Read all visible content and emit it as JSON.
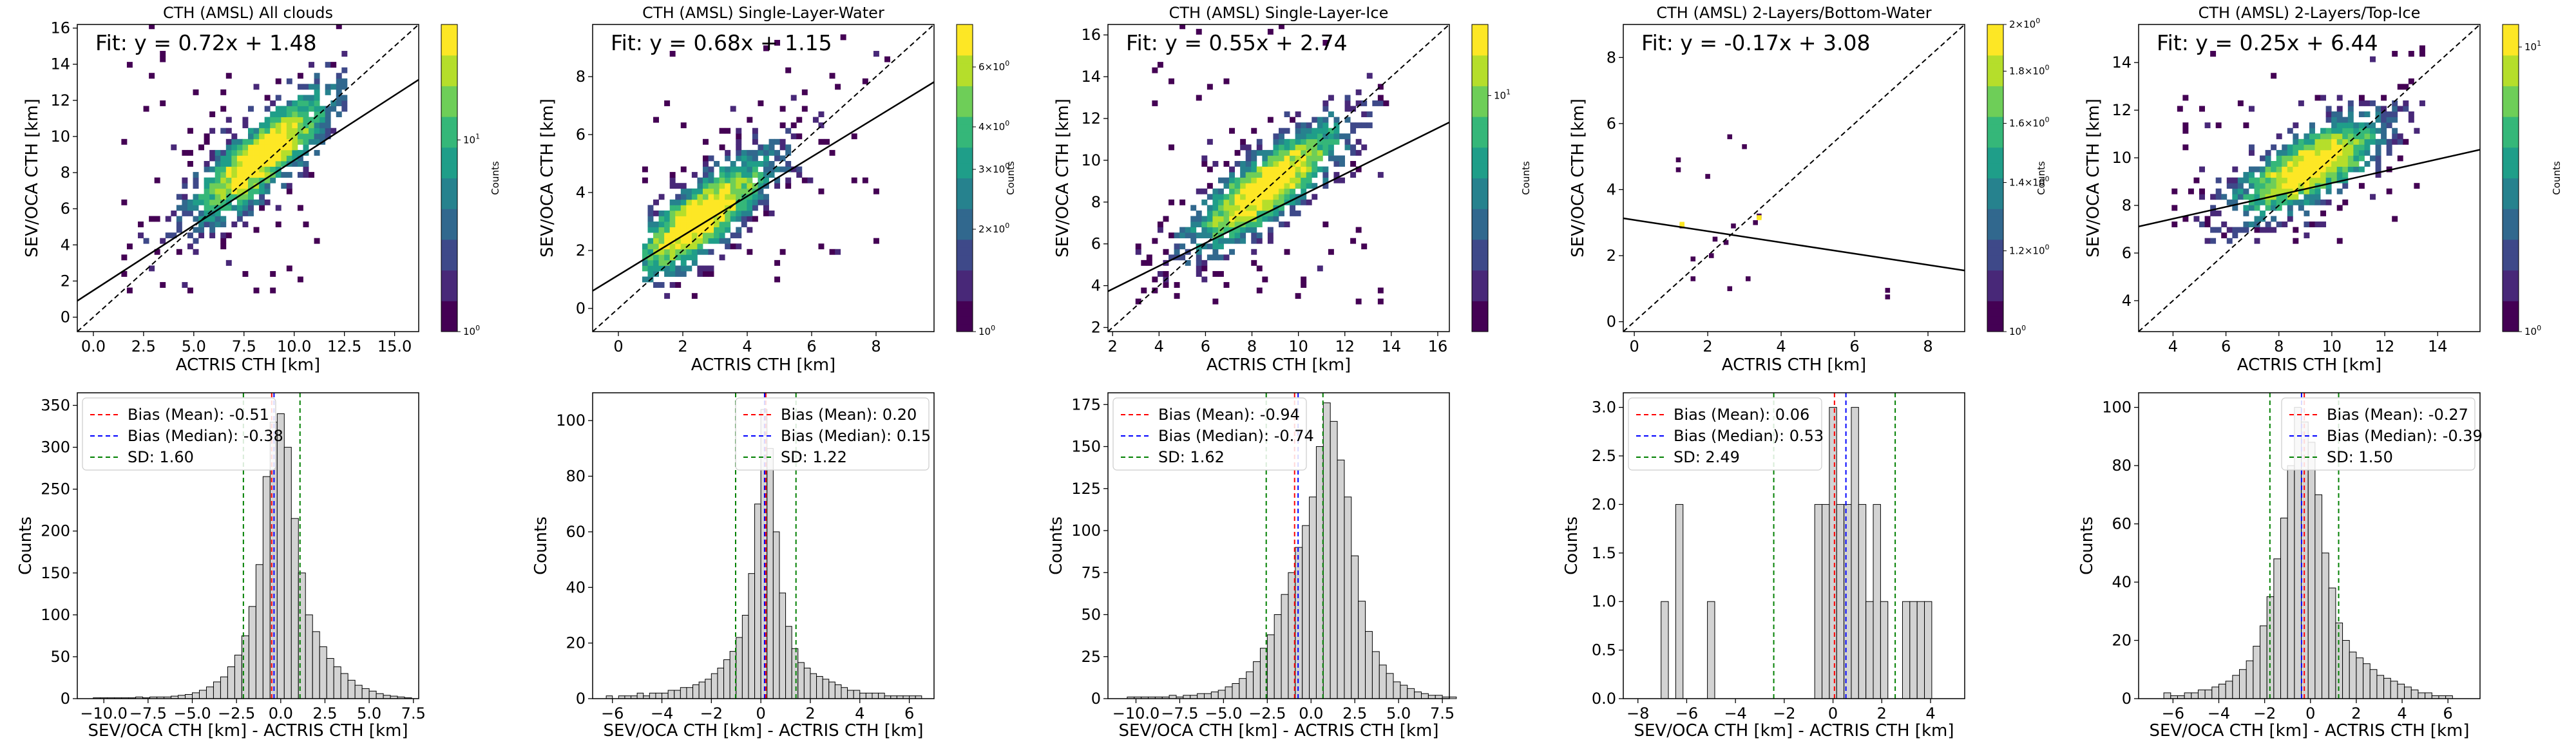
{
  "figure": {
    "scatter_xlabel": "ACTRIS CTH [km]",
    "scatter_ylabel": "SEV/OCA CTH [km]",
    "hist_xlabel": "SEV/OCA CTH [km] - ACTRIS CTH [km]",
    "hist_ylabel": "Counts",
    "colorbar_label": "Counts"
  },
  "colors": {
    "heat_low": "#440154",
    "heat_mid": "#21918c",
    "heat_high": "#fde725",
    "mean_line": "#ff0000",
    "median_line": "#0000ff",
    "sd_line": "#008000",
    "hist_fill": "#d3d3d3"
  },
  "chart_data": [
    {
      "type": "heatmap",
      "title": "CTH (AMSL) All clouds",
      "fit_label": "Fit: y = 0.72x + 1.48",
      "fit": {
        "slope": 0.72,
        "intercept": 1.48
      },
      "xlim": [
        -0.8,
        16.2
      ],
      "ylim": [
        -0.8,
        16.2
      ],
      "xticks": [
        0.0,
        2.5,
        5.0,
        7.5,
        10.0,
        12.5,
        15.0
      ],
      "yticks": [
        0,
        2,
        4,
        6,
        8,
        10,
        12,
        14,
        16
      ],
      "colorbar_ticks": [
        "10^0",
        "10^1"
      ],
      "colorbar_range": [
        1,
        40
      ],
      "cluster": {
        "x_range": [
          1.0,
          12.5
        ],
        "y_range": [
          0.5,
          15.5
        ],
        "center": [
          8.5,
          7.5
        ]
      }
    },
    {
      "type": "heatmap",
      "title": "CTH (AMSL) Single-Layer-Water",
      "fit_label": "Fit: y = 0.68x + 1.15",
      "fit": {
        "slope": 0.68,
        "intercept": 1.15
      },
      "xlim": [
        -0.8,
        9.8
      ],
      "ylim": [
        -0.8,
        9.8
      ],
      "xticks": [
        0,
        2,
        4,
        6,
        8
      ],
      "yticks": [
        0,
        2,
        4,
        6,
        8
      ],
      "colorbar_ticks": [
        "10^0",
        "2×10^0",
        "3×10^0",
        "4×10^0",
        "6×10^0"
      ],
      "colorbar_range": [
        1,
        8
      ],
      "cluster": {
        "x_range": [
          0.7,
          8.5
        ],
        "y_range": [
          0.3,
          8.5
        ],
        "center": [
          2.5,
          2.8
        ]
      }
    },
    {
      "type": "heatmap",
      "title": "CTH (AMSL) Single-Layer-Ice",
      "fit_label": "Fit: y = 0.55x + 2.74",
      "fit": {
        "slope": 0.55,
        "intercept": 2.74
      },
      "xlim": [
        1.8,
        16.5
      ],
      "ylim": [
        1.8,
        16.5
      ],
      "xticks": [
        2,
        4,
        6,
        8,
        10,
        12,
        14,
        16
      ],
      "yticks": [
        2,
        4,
        6,
        8,
        10,
        12,
        14,
        16
      ],
      "colorbar_ticks": [
        "10^1"
      ],
      "colorbar_range": [
        1,
        20
      ],
      "cluster": {
        "x_range": [
          3.0,
          14.0
        ],
        "y_range": [
          3.0,
          15.5
        ],
        "center": [
          8.8,
          7.8
        ]
      }
    },
    {
      "type": "heatmap",
      "title": "CTH (AMSL) 2-Layers/Bottom-Water",
      "fit_label": "Fit: y = -0.17x + 3.08",
      "fit": {
        "slope": -0.17,
        "intercept": 3.08
      },
      "xlim": [
        -0.3,
        9.0
      ],
      "ylim": [
        -0.3,
        9.0
      ],
      "xticks": [
        0,
        2,
        4,
        6,
        8
      ],
      "yticks": [
        0,
        2,
        4,
        6,
        8
      ],
      "colorbar_ticks": [
        "10^0",
        "1.2×10^0",
        "1.4×10^0",
        "1.6×10^0",
        "1.8×10^0",
        "2×10^0"
      ],
      "colorbar_range": [
        1,
        2
      ],
      "points": [
        [
          1.2,
          4.9
        ],
        [
          1.2,
          4.6
        ],
        [
          1.3,
          2.9
        ],
        [
          1.6,
          1.9
        ],
        [
          1.6,
          1.3
        ],
        [
          2.0,
          4.4
        ],
        [
          2.1,
          2.0
        ],
        [
          2.2,
          2.5
        ],
        [
          2.5,
          2.4
        ],
        [
          2.6,
          1.0
        ],
        [
          2.6,
          5.6
        ],
        [
          2.7,
          2.9
        ],
        [
          3.0,
          5.3
        ],
        [
          3.1,
          1.3
        ],
        [
          3.3,
          3.0
        ],
        [
          3.4,
          3.2
        ],
        [
          6.9,
          0.95
        ],
        [
          6.9,
          0.75
        ]
      ],
      "highlighted_points": [
        [
          1.3,
          2.95
        ],
        [
          3.4,
          3.15
        ]
      ]
    },
    {
      "type": "heatmap",
      "title": "CTH (AMSL) 2-Layers/Top-Ice",
      "fit_label": "Fit: y = 0.25x + 6.44",
      "fit": {
        "slope": 0.25,
        "intercept": 6.44
      },
      "xlim": [
        2.7,
        15.6
      ],
      "ylim": [
        2.7,
        15.6
      ],
      "xticks": [
        4,
        6,
        8,
        10,
        12,
        14
      ],
      "yticks": [
        4,
        6,
        8,
        10,
        12,
        14
      ],
      "colorbar_ticks": [
        "10^0",
        "10^1"
      ],
      "colorbar_range": [
        1,
        12
      ],
      "cluster": {
        "x_range": [
          4.0,
          13.5
        ],
        "y_range": [
          6.0,
          13.5
        ],
        "center": [
          9.3,
          8.8
        ]
      }
    },
    {
      "type": "bar",
      "legend": [
        "Bias (Mean): -0.51",
        "Bias (Median): -0.38",
        "SD: 1.60"
      ],
      "legend_position": "top-left",
      "mean": -0.51,
      "median": -0.38,
      "sd": 1.6,
      "xlim": [
        -11.5,
        7.8
      ],
      "ylim": [
        0,
        365
      ],
      "xticks": [
        -10.0,
        -7.5,
        -5.0,
        -2.5,
        0.0,
        2.5,
        5.0,
        7.5
      ],
      "yticks": [
        0,
        50,
        100,
        150,
        200,
        250,
        300,
        350
      ],
      "bin_start": -10.6,
      "bin_width": 0.4,
      "values": [
        1,
        1,
        1,
        1,
        1,
        1,
        2,
        1,
        2,
        2,
        2,
        3,
        4,
        5,
        7,
        10,
        14,
        20,
        26,
        38,
        52,
        75,
        110,
        160,
        265,
        330,
        340,
        300,
        215,
        150,
        100,
        80,
        62,
        48,
        38,
        30,
        22,
        16,
        12,
        9,
        6,
        4,
        3,
        2,
        1
      ]
    },
    {
      "type": "bar",
      "legend": [
        "Bias (Mean): 0.20",
        "Bias (Median): 0.15",
        "SD: 1.22"
      ],
      "legend_position": "top-right",
      "mean": 0.2,
      "median": 0.15,
      "sd": 1.22,
      "xlim": [
        -6.8,
        7.0
      ],
      "ylim": [
        0,
        110
      ],
      "xticks": [
        -6,
        -4,
        -2,
        0,
        2,
        4,
        6
      ],
      "yticks": [
        0,
        20,
        40,
        60,
        80,
        100
      ],
      "bin_start": -6.25,
      "bin_width": 0.25,
      "values": [
        1,
        0,
        1,
        1,
        1,
        2,
        1,
        2,
        2,
        2,
        3,
        3,
        4,
        4,
        5,
        6,
        7,
        9,
        11,
        14,
        17,
        22,
        30,
        45,
        70,
        104,
        90,
        60,
        38,
        26,
        18,
        13,
        11,
        9,
        8,
        7,
        6,
        5,
        4,
        3,
        3,
        2,
        2,
        2,
        2,
        1,
        1,
        1,
        1,
        1,
        1
      ]
    },
    {
      "type": "bar",
      "legend": [
        "Bias (Mean): -0.94",
        "Bias (Median): -0.74",
        "SD: 1.62"
      ],
      "legend_position": "top-left",
      "mean": -0.94,
      "median": -0.74,
      "sd": 1.62,
      "xlim": [
        -11.6,
        7.9
      ],
      "ylim": [
        0,
        182
      ],
      "xticks": [
        -10.0,
        -7.5,
        -5.0,
        -2.5,
        0.0,
        2.5,
        5.0,
        7.5
      ],
      "yticks": [
        0,
        25,
        50,
        75,
        100,
        125,
        150,
        175
      ],
      "bin_start": -10.5,
      "bin_width": 0.4,
      "values": [
        1,
        1,
        1,
        1,
        1,
        1,
        2,
        1,
        2,
        2,
        3,
        3,
        4,
        5,
        7,
        9,
        12,
        16,
        22,
        30,
        38,
        50,
        62,
        75,
        90,
        103,
        120,
        150,
        176,
        165,
        142,
        120,
        85,
        58,
        40,
        28,
        20,
        15,
        10,
        8,
        6,
        4,
        3,
        2,
        2,
        1,
        1
      ]
    },
    {
      "type": "bar",
      "legend": [
        "Bias (Mean): 0.06",
        "Bias (Median): 0.53",
        "SD: 2.49"
      ],
      "legend_position": "top-left",
      "mean": 0.06,
      "median": 0.53,
      "sd": 2.49,
      "xlim": [
        -8.6,
        5.4
      ],
      "ylim": [
        0,
        3.15
      ],
      "xticks": [
        -8,
        -6,
        -4,
        -2,
        0,
        2,
        4
      ],
      "yticks": [
        0.0,
        0.5,
        1.0,
        1.5,
        2.0,
        2.5,
        3.0
      ],
      "bars": [
        {
          "x": -6.9,
          "h": 1
        },
        {
          "x": -6.3,
          "h": 2
        },
        {
          "x": -5.0,
          "h": 1
        },
        {
          "x": -0.6,
          "h": 2
        },
        {
          "x": -0.3,
          "h": 2
        },
        {
          "x": 0.0,
          "h": 3
        },
        {
          "x": 0.3,
          "h": 2
        },
        {
          "x": 0.6,
          "h": 2
        },
        {
          "x": 0.9,
          "h": 3
        },
        {
          "x": 1.2,
          "h": 2
        },
        {
          "x": 1.5,
          "h": 1
        },
        {
          "x": 1.8,
          "h": 2
        },
        {
          "x": 2.1,
          "h": 1
        },
        {
          "x": 3.0,
          "h": 1
        },
        {
          "x": 3.3,
          "h": 1
        },
        {
          "x": 3.6,
          "h": 1
        },
        {
          "x": 3.9,
          "h": 1
        }
      ],
      "bar_width": 0.3
    },
    {
      "type": "bar",
      "legend": [
        "Bias (Mean): -0.27",
        "Bias (Median): -0.39",
        "SD: 1.50"
      ],
      "legend_position": "top-right",
      "mean": -0.27,
      "median": -0.39,
      "sd": 1.5,
      "xlim": [
        -7.5,
        7.4
      ],
      "ylim": [
        0,
        105
      ],
      "xticks": [
        -6,
        -4,
        -2,
        0,
        2,
        4,
        6
      ],
      "yticks": [
        0,
        20,
        40,
        60,
        80,
        100
      ],
      "bin_start": -6.4,
      "bin_width": 0.3,
      "values": [
        2,
        1,
        1,
        2,
        2,
        3,
        3,
        4,
        5,
        6,
        8,
        10,
        13,
        18,
        25,
        35,
        48,
        62,
        80,
        100,
        95,
        88,
        70,
        50,
        38,
        26,
        20,
        16,
        14,
        12,
        10,
        8,
        7,
        6,
        5,
        4,
        3,
        2,
        2,
        1,
        1,
        1
      ]
    }
  ]
}
